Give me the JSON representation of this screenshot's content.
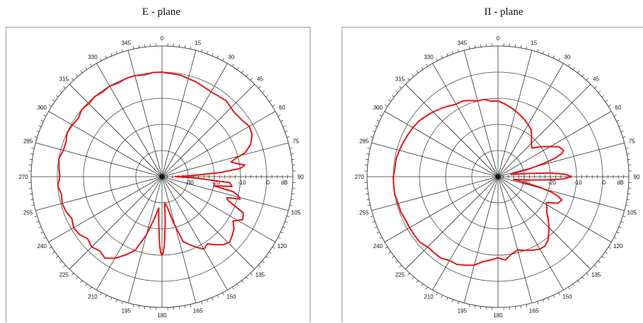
{
  "chart_data": [
    {
      "type": "polar",
      "title": "E - plane",
      "unit_label": "dB",
      "r_range": [
        -40,
        10
      ],
      "r_ticks": [
        "-30",
        "-20",
        "-10",
        "0"
      ],
      "angle_ticks": [
        "0",
        "15",
        "30",
        "45",
        "60",
        "75",
        "90",
        "105",
        "120",
        "135",
        "150",
        "165",
        "180",
        "195",
        "210",
        "225",
        "240",
        "255",
        "270",
        "285",
        "300",
        "315",
        "330",
        "345"
      ],
      "grid": true,
      "line_color": "#e0191b",
      "series": [
        {
          "theta": [
            0,
            10,
            20,
            30,
            40,
            48,
            55,
            60,
            65,
            70,
            74,
            76,
            78,
            80,
            82,
            84,
            86,
            87,
            88,
            89,
            90,
            92,
            95,
            98,
            100,
            102,
            104,
            106,
            108,
            110,
            114,
            118,
            122,
            126,
            130,
            134,
            138,
            142,
            146,
            150,
            154,
            158,
            162,
            166,
            170,
            174,
            176,
            178,
            179,
            180,
            181,
            182,
            184,
            186,
            190,
            195,
            200,
            205,
            210,
            215,
            220,
            225,
            230,
            235,
            240,
            245,
            250,
            255,
            260,
            265,
            270,
            275,
            280,
            285,
            290,
            295,
            300,
            305,
            310,
            315,
            320,
            325,
            330,
            335,
            340,
            345,
            350,
            355
          ],
          "values": [
            0,
            -0.5,
            -1.5,
            -2.5,
            -2,
            -3,
            -2.5,
            -1.5,
            -2,
            -4,
            -7,
            -11,
            -13,
            -11,
            -8,
            -10,
            -18,
            -25,
            -30,
            -33,
            -35,
            -28,
            -14,
            -13,
            -20,
            -12,
            -10,
            -9,
            -14,
            -13,
            -6,
            -5,
            -8,
            -6,
            -5,
            -4,
            -5,
            -7,
            -9,
            -8,
            -10,
            -12,
            -14,
            -22,
            -28,
            -30,
            -22,
            -14,
            -11,
            -10,
            -11,
            -14,
            -22,
            -28,
            -24,
            -17,
            -10,
            -7,
            -4,
            -2,
            -3,
            -2,
            -3,
            -1.5,
            -1,
            -2,
            -1,
            -0.5,
            -1,
            0,
            -1,
            -0.5,
            0,
            -1,
            -1,
            0,
            -0.5,
            -1,
            0,
            -0.5,
            0,
            -0.5,
            0,
            -0.5,
            0,
            0,
            -0.5,
            0
          ]
        }
      ]
    },
    {
      "type": "polar",
      "title": "II - plane",
      "unit_label": "dB",
      "r_range": [
        -40,
        10
      ],
      "r_ticks": [
        "-30",
        "-20",
        "-10",
        "0"
      ],
      "angle_ticks": [
        "0",
        "15",
        "30",
        "45",
        "60",
        "75",
        "90",
        "105",
        "120",
        "135",
        "150",
        "165",
        "180",
        "195",
        "210",
        "225",
        "240",
        "255",
        "270",
        "285",
        "300",
        "315",
        "330",
        "345"
      ],
      "grid": true,
      "line_color": "#e0191b",
      "series": [
        {
          "theta": [
            0,
            5,
            10,
            15,
            20,
            25,
            30,
            35,
            40,
            45,
            50,
            55,
            60,
            64,
            68,
            70,
            72,
            74,
            76,
            78,
            80,
            82,
            84,
            86,
            88,
            90,
            92,
            94,
            96,
            98,
            100,
            102,
            104,
            106,
            108,
            110,
            114,
            118,
            122,
            126,
            130,
            134,
            138,
            142,
            146,
            150,
            155,
            160,
            165,
            170,
            175,
            180,
            185,
            190,
            195,
            200,
            205,
            210,
            215,
            220,
            225,
            230,
            235,
            240,
            245,
            250,
            255,
            260,
            265,
            270,
            275,
            280,
            285,
            290,
            295,
            300,
            305,
            310,
            315,
            320,
            325,
            330,
            335,
            340,
            345,
            350,
            355
          ],
          "values": [
            -11,
            -12,
            -13,
            -14,
            -15,
            -16,
            -17,
            -18,
            -20,
            -22,
            -23,
            -20,
            -17,
            -14,
            -13,
            -14,
            -17,
            -22,
            -28,
            -33,
            -35,
            -33,
            -28,
            -20,
            -14,
            -12,
            -15,
            -22,
            -28,
            -32,
            -34,
            -30,
            -24,
            -19,
            -16,
            -14,
            -15,
            -19,
            -18,
            -17,
            -15,
            -13,
            -11,
            -9,
            -8,
            -8,
            -9,
            -10,
            -11,
            -10,
            -8,
            -9,
            -8,
            -7,
            -5,
            -4,
            -3,
            -3,
            -2,
            -2,
            -2,
            -1,
            -1,
            -1,
            -1,
            -0.5,
            -0.5,
            0,
            0,
            0,
            -0.5,
            -0.5,
            -1,
            -1.5,
            -2,
            -2.5,
            -3,
            -4,
            -5,
            -6,
            -7,
            -8,
            -8,
            -9,
            -10,
            -10,
            -11
          ]
        }
      ]
    }
  ]
}
